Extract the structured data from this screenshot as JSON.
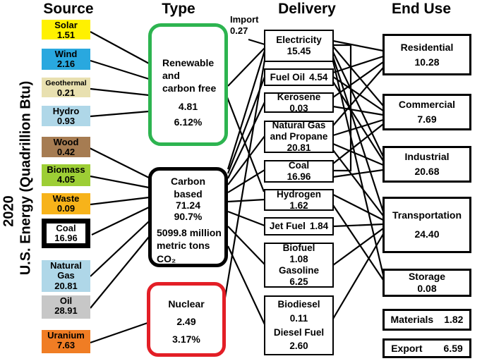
{
  "axis": {
    "year": "2020",
    "label": "U.S. Energy (Quadrillion Btu)"
  },
  "headers": {
    "source": "Source",
    "type": "Type",
    "delivery": "Delivery",
    "end_use": "End Use"
  },
  "import_node": {
    "label": "Import",
    "value": "0.27"
  },
  "colors": {
    "renewable_border": "#2DB450",
    "carbon_border": "#000000",
    "nuclear_border": "#E31E26",
    "line": "#000000"
  },
  "sources": [
    {
      "id": "solar",
      "label": "Solar",
      "value": "1.51",
      "color": "#FFF100"
    },
    {
      "id": "wind",
      "label": "Wind",
      "value": "2.16",
      "color": "#29A8DF"
    },
    {
      "id": "geothermal",
      "label": "Geothermal",
      "value": "0.21",
      "color": "#E8E0B0"
    },
    {
      "id": "hydro",
      "label": "Hydro",
      "value": "0.93",
      "color": "#AFD7E8"
    },
    {
      "id": "wood",
      "label": "Wood",
      "value": "0.42",
      "color": "#A67C52"
    },
    {
      "id": "biomass",
      "label": "Biomass",
      "value": "4.05",
      "color": "#9DCE35"
    },
    {
      "id": "waste",
      "label": "Waste",
      "value": "0.09",
      "color": "#F7B31A"
    },
    {
      "id": "coal",
      "label": "Coal",
      "value": "16.96",
      "color": "#FFFFFF"
    },
    {
      "id": "natural_gas",
      "label": "Natural Gas",
      "value": "20.81",
      "color": "#AFD7E8"
    },
    {
      "id": "oil",
      "label": "Oil",
      "value": "28.91",
      "color": "#C7C7C7"
    },
    {
      "id": "uranium",
      "label": "Uranium",
      "value": "7.63",
      "color": "#F07D24"
    }
  ],
  "types": [
    {
      "id": "renewable",
      "label": "Renewable\nand\ncarbon free",
      "value": "4.81",
      "percent": "6.12%"
    },
    {
      "id": "carbon",
      "label": "Carbon\nbased",
      "value": "71.24",
      "percent": "90.7%",
      "note": "5099.8 million\nmetric tons\nCO₂"
    },
    {
      "id": "nuclear",
      "label": "Nuclear",
      "value": "2.49",
      "percent": "3.17%"
    }
  ],
  "delivery": [
    {
      "id": "electricity",
      "label": "Electricity",
      "value": "15.45"
    },
    {
      "id": "fuel_oil",
      "label": "Fuel Oil",
      "value": "4.54"
    },
    {
      "id": "kerosene",
      "label": "Kerosene",
      "value": "0.03"
    },
    {
      "id": "natural_gas_propane",
      "label": "Natural Gas\nand Propane",
      "value": "20.81"
    },
    {
      "id": "coal_delivery",
      "label": "Coal",
      "value": "16.96"
    },
    {
      "id": "hydrogen",
      "label": "Hydrogen",
      "value": "1.62"
    },
    {
      "id": "jet_fuel",
      "label": "Jet Fuel",
      "value": "1.84"
    },
    {
      "id": "gasoline",
      "label": "Biofuel",
      "value": "1.08",
      "label2": "Gasoline",
      "value2": "6.25"
    },
    {
      "id": "diesel",
      "label": "Biodiesel",
      "value": "0.11",
      "label2": "Diesel Fuel",
      "value2": "2.60"
    }
  ],
  "end_use": [
    {
      "id": "residential",
      "label": "Residential",
      "value": "10.28"
    },
    {
      "id": "commercial",
      "label": "Commercial",
      "value": "7.69"
    },
    {
      "id": "industrial",
      "label": "Industrial",
      "value": "20.68"
    },
    {
      "id": "transportation",
      "label": "Transportation",
      "value": "24.40"
    },
    {
      "id": "storage",
      "label": "Storage",
      "value": "0.08"
    },
    {
      "id": "materials",
      "label": "Materials",
      "value": "1.82"
    },
    {
      "id": "export",
      "label": "Export",
      "value": "6.59"
    }
  ],
  "connections": [
    {
      "from": "solar",
      "to": "renewable"
    },
    {
      "from": "wind",
      "to": "renewable"
    },
    {
      "from": "geothermal",
      "to": "renewable"
    },
    {
      "from": "hydro",
      "to": "renewable"
    },
    {
      "from": "wood",
      "to": "carbon"
    },
    {
      "from": "biomass",
      "to": "carbon"
    },
    {
      "from": "waste",
      "to": "carbon"
    },
    {
      "from": "coal",
      "to": "carbon"
    },
    {
      "from": "natural_gas",
      "to": "carbon"
    },
    {
      "from": "oil",
      "to": "carbon"
    },
    {
      "from": "uranium",
      "to": "nuclear"
    },
    {
      "from": "import",
      "to": "electricity"
    },
    {
      "from": "renewable",
      "to": "electricity"
    },
    {
      "from": "renewable",
      "to": "hydrogen"
    },
    {
      "from": "carbon",
      "to": "electricity"
    },
    {
      "from": "carbon",
      "to": "fuel_oil"
    },
    {
      "from": "carbon",
      "to": "kerosene"
    },
    {
      "from": "carbon",
      "to": "natural_gas_propane"
    },
    {
      "from": "carbon",
      "to": "coal_delivery"
    },
    {
      "from": "carbon",
      "to": "hydrogen"
    },
    {
      "from": "carbon",
      "to": "jet_fuel"
    },
    {
      "from": "carbon",
      "to": "gasoline"
    },
    {
      "from": "carbon",
      "to": "diesel"
    },
    {
      "from": "nuclear",
      "to": "electricity"
    },
    {
      "from": "electricity",
      "to": "residential"
    },
    {
      "from": "electricity",
      "to": "commercial"
    },
    {
      "from": "electricity",
      "to": "industrial"
    },
    {
      "from": "electricity",
      "to": "transportation"
    },
    {
      "from": "electricity",
      "to": "storage"
    },
    {
      "from": "coal_delivery",
      "to": "electricity"
    },
    {
      "from": "fuel_oil",
      "to": "residential"
    },
    {
      "from": "fuel_oil",
      "to": "commercial"
    },
    {
      "from": "fuel_oil",
      "to": "industrial"
    },
    {
      "from": "kerosene",
      "to": "residential"
    },
    {
      "from": "kerosene",
      "to": "commercial"
    },
    {
      "from": "natural_gas_propane",
      "to": "residential"
    },
    {
      "from": "natural_gas_propane",
      "to": "commercial"
    },
    {
      "from": "natural_gas_propane",
      "to": "industrial"
    },
    {
      "from": "natural_gas_propane",
      "to": "transportation"
    },
    {
      "from": "coal_delivery",
      "to": "commercial"
    },
    {
      "from": "coal_delivery",
      "to": "industrial"
    },
    {
      "from": "hydrogen",
      "to": "transportation"
    },
    {
      "from": "hydrogen",
      "to": "storage"
    },
    {
      "from": "jet_fuel",
      "to": "transportation"
    },
    {
      "from": "gasoline",
      "to": "transportation"
    },
    {
      "from": "diesel",
      "to": "transportation"
    }
  ]
}
